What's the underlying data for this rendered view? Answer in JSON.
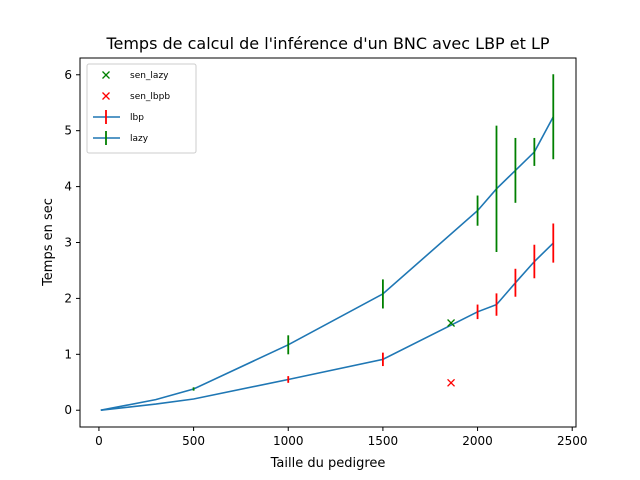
{
  "chart_data": {
    "type": "line",
    "title": "Temps de calcul de l'inférence d'un BNC avec LBP et LP",
    "xlabel": "Taille du pedigree",
    "ylabel": "Temps en sec",
    "xlim": [
      -100,
      2520
    ],
    "ylim": [
      -0.3,
      6.3
    ],
    "xticks": [
      "0",
      "500",
      "1000",
      "1500",
      "2000",
      "2500"
    ],
    "yticks": [
      "0",
      "1",
      "2",
      "3",
      "4",
      "5",
      "6"
    ],
    "grid": false,
    "legend_position": "top-left",
    "series": [
      {
        "name": "lbp",
        "kind": "line-errorbar",
        "line_color": "#1f77b4",
        "err_color": "#ff0000",
        "points": [
          {
            "x": 10,
            "y": 0.0,
            "yerr": 0.0
          },
          {
            "x": 300,
            "y": 0.11,
            "yerr": 0.0
          },
          {
            "x": 500,
            "y": 0.2,
            "yerr": 0.0
          },
          {
            "x": 1000,
            "y": 0.55,
            "yerr": 0.06
          },
          {
            "x": 1500,
            "y": 0.91,
            "yerr": 0.12
          },
          {
            "x": 2000,
            "y": 1.76,
            "yerr": 0.13
          },
          {
            "x": 2100,
            "y": 1.89,
            "yerr": 0.2
          },
          {
            "x": 2200,
            "y": 2.28,
            "yerr": 0.25
          },
          {
            "x": 2300,
            "y": 2.66,
            "yerr": 0.3
          },
          {
            "x": 2400,
            "y": 2.99,
            "yerr": 0.35
          }
        ]
      },
      {
        "name": "lazy",
        "kind": "line-errorbar",
        "line_color": "#1f77b4",
        "err_color": "#008000",
        "points": [
          {
            "x": 10,
            "y": 0.0,
            "yerr": 0.0
          },
          {
            "x": 300,
            "y": 0.19,
            "yerr": 0.0
          },
          {
            "x": 500,
            "y": 0.38,
            "yerr": 0.03
          },
          {
            "x": 1000,
            "y": 1.17,
            "yerr": 0.17
          },
          {
            "x": 1500,
            "y": 2.08,
            "yerr": 0.26
          },
          {
            "x": 2000,
            "y": 3.57,
            "yerr": 0.27
          },
          {
            "x": 2100,
            "y": 3.96,
            "yerr": 1.13
          },
          {
            "x": 2200,
            "y": 4.29,
            "yerr": 0.58
          },
          {
            "x": 2300,
            "y": 4.62,
            "yerr": 0.25
          },
          {
            "x": 2400,
            "y": 5.25,
            "yerr": 0.76
          }
        ]
      },
      {
        "name": "sen_lazy",
        "kind": "marker",
        "marker": "x",
        "color": "#008000",
        "points": [
          {
            "x": 1860,
            "y": 1.56
          }
        ]
      },
      {
        "name": "sen_lbpb",
        "kind": "marker",
        "marker": "x",
        "color": "#ff0000",
        "points": [
          {
            "x": 1860,
            "y": 0.49
          }
        ]
      }
    ],
    "legend": [
      "sen_lazy",
      "sen_lbpb",
      "lbp",
      "lazy"
    ]
  }
}
